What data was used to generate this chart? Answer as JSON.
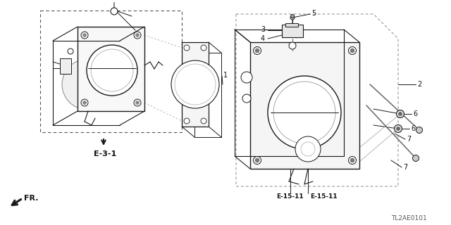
{
  "bg_color": "#ffffff",
  "diagram_code": "TL2AE0101",
  "lc": "#1a1a1a",
  "tc": "#111111",
  "labels": {
    "E31": "E-3-1",
    "E1511a": "E-15-11",
    "E1511b": "E-15-11",
    "FR": "FR.",
    "p1": "1",
    "p2": "2",
    "p3": "3",
    "p4": "4",
    "p5": "5",
    "p6a": "6",
    "p6b": "6",
    "p7a": "7",
    "p7b": "7"
  }
}
